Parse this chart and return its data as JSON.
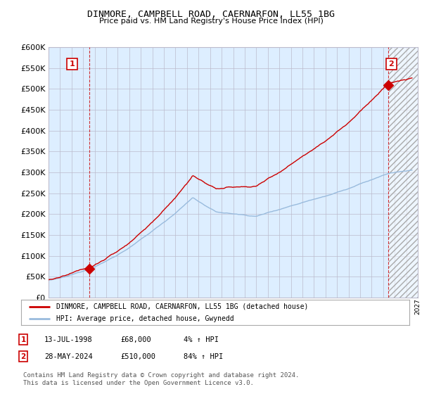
{
  "title": "DINMORE, CAMPBELL ROAD, CAERNARFON, LL55 1BG",
  "subtitle": "Price paid vs. HM Land Registry's House Price Index (HPI)",
  "ylim": [
    0,
    600000
  ],
  "yticks": [
    0,
    50000,
    100000,
    150000,
    200000,
    250000,
    300000,
    350000,
    400000,
    450000,
    500000,
    550000,
    600000
  ],
  "legend_line1": "DINMORE, CAMPBELL ROAD, CAERNARFON, LL55 1BG (detached house)",
  "legend_line2": "HPI: Average price, detached house, Gwynedd",
  "ann1_x": 1998.53,
  "ann1_y": 68000,
  "ann2_x": 2024.41,
  "ann2_y": 510000,
  "line_color_property": "#cc0000",
  "line_color_hpi": "#99bbdd",
  "background_color": "#ffffff",
  "chart_bg": "#ddeeff",
  "grid_color": "#bbbbcc",
  "hatch_start": 2024.5,
  "xmin": 1995.0,
  "xmax": 2027.0,
  "footer_text": "Contains HM Land Registry data © Crown copyright and database right 2024.\nThis data is licensed under the Open Government Licence v3.0.",
  "row1_date": "13-JUL-1998",
  "row1_price": "£68,000",
  "row1_hpi": "4% ↑ HPI",
  "row2_date": "28-MAY-2024",
  "row2_price": "£510,000",
  "row2_hpi": "84% ↑ HPI"
}
